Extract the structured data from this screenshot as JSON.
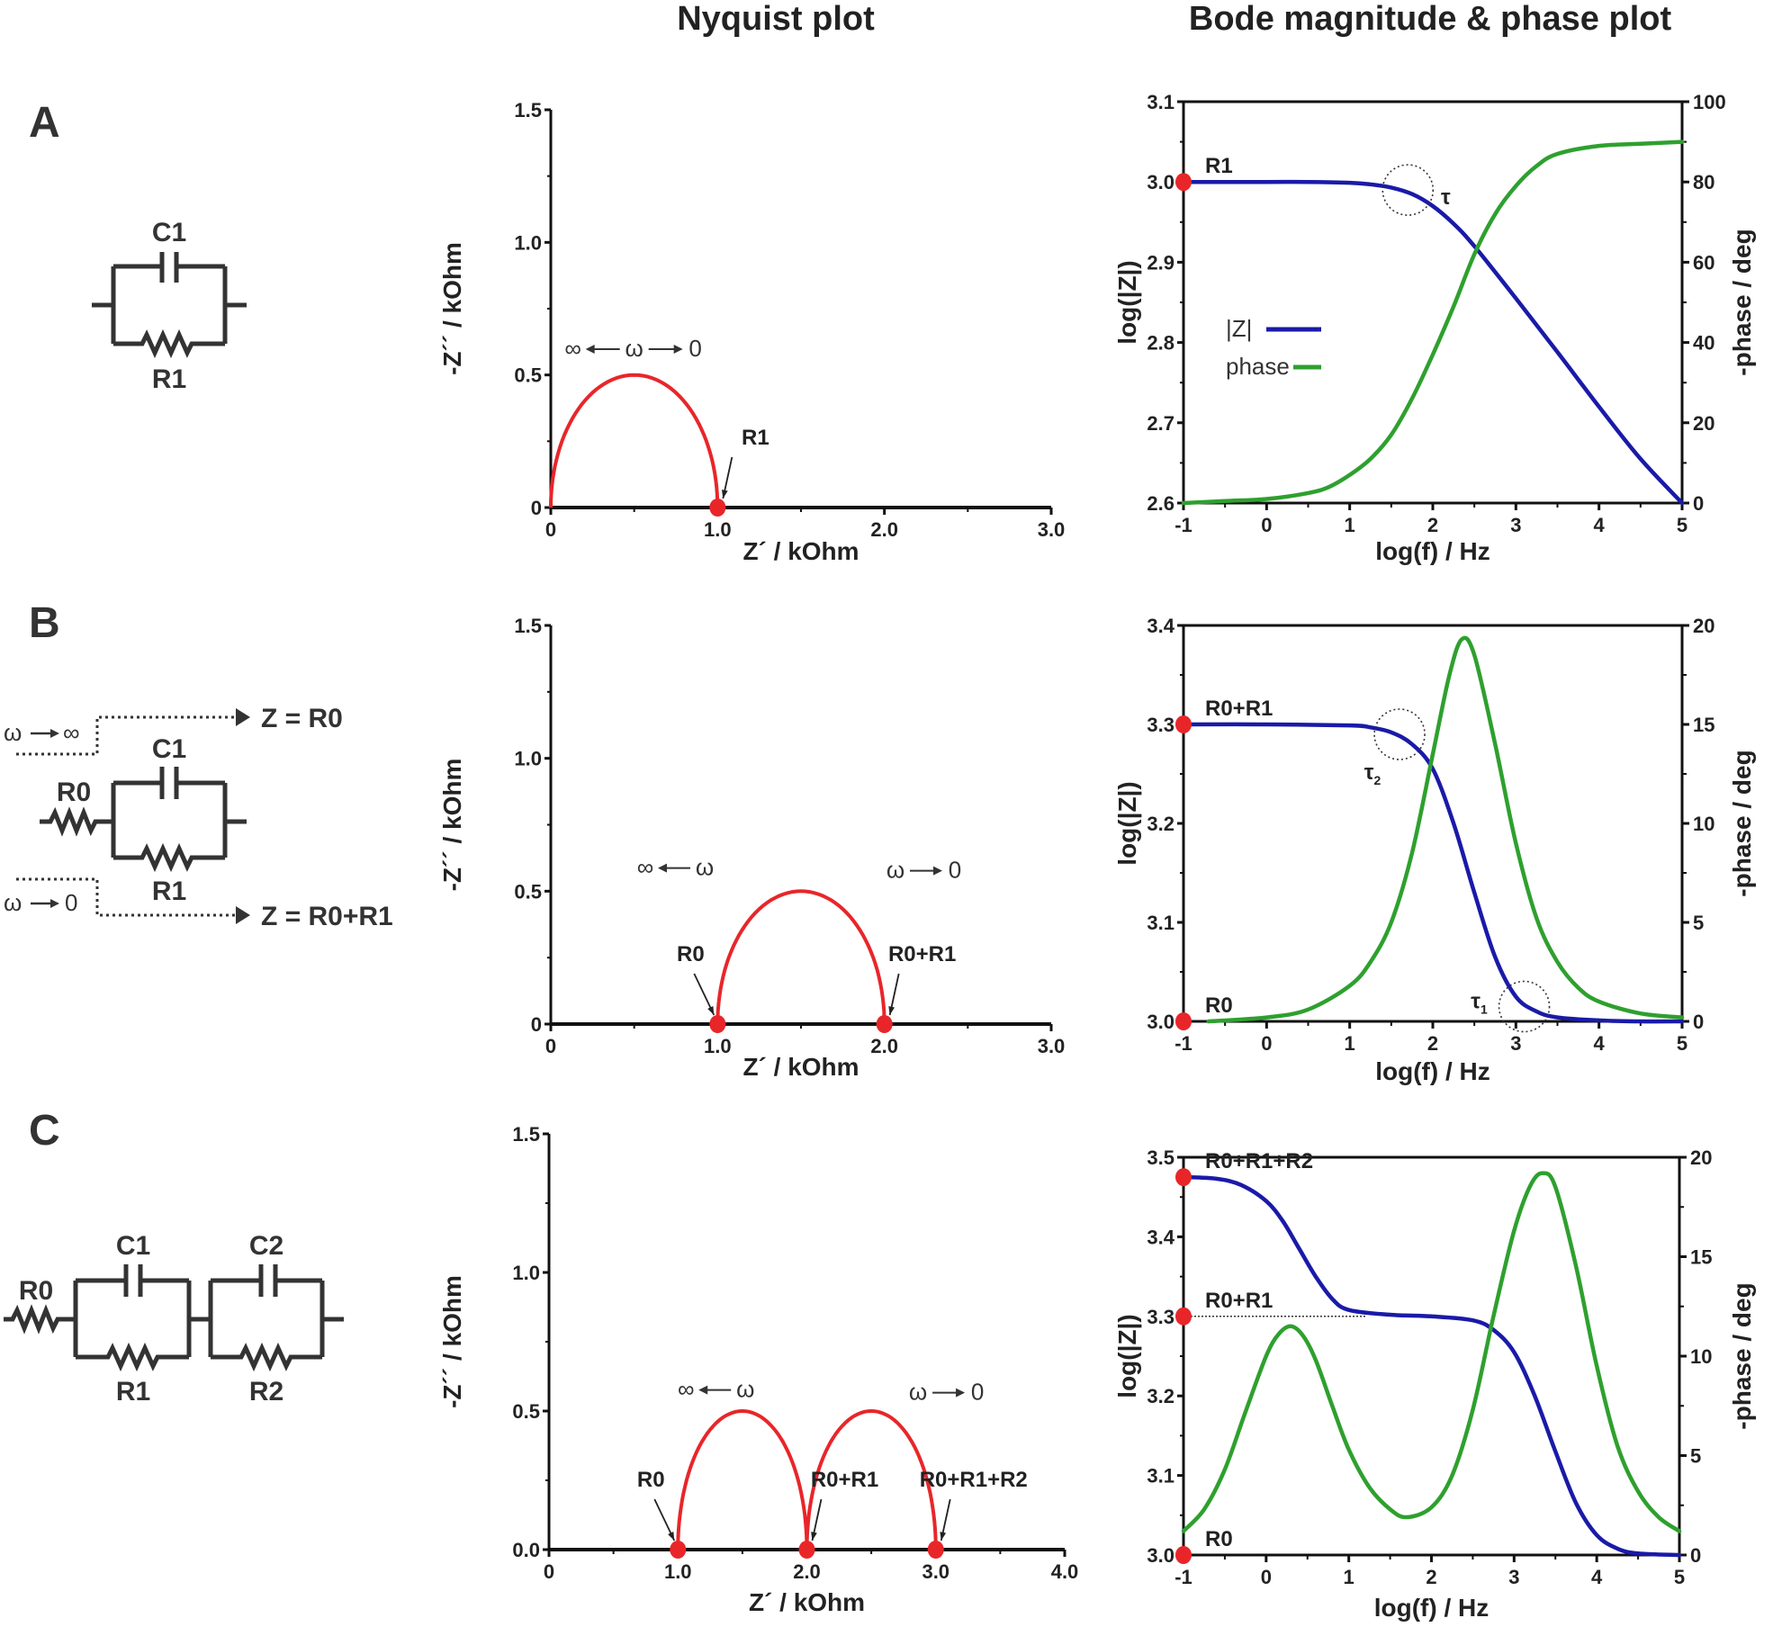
{
  "headers": {
    "nyquist": "Nyquist plot",
    "bode": "Bode magnitude & phase plot"
  },
  "panels": [
    {
      "label": "A",
      "circuit": {
        "elements": [
          "C1",
          "R1"
        ],
        "description": "C1 in parallel with R1"
      }
    },
    {
      "label": "B",
      "circuit": {
        "elements": [
          "R0",
          "C1",
          "R1"
        ],
        "description": "R0 in series with (C1 parallel R1)",
        "limit_high": {
          "omega": "ω",
          "arrow_to": "∞",
          "result": "Z = R0"
        },
        "limit_low": {
          "omega": "ω",
          "arrow_to": "0",
          "result": "Z = R0+R1"
        }
      }
    },
    {
      "label": "C",
      "circuit": {
        "elements": [
          "R0",
          "C1",
          "R1",
          "C2",
          "R2"
        ],
        "description": "R0 in series with (C1 parallel R1) and (C2 parallel R2)"
      }
    }
  ],
  "chart_data": [
    {
      "id": "nyquist-A",
      "type": "line",
      "title": "Nyquist plot",
      "xlabel": "Z´ / kOhm",
      "ylabel": "-Z´´ / kOhm",
      "xlim": [
        0,
        3.0
      ],
      "ylim": [
        0,
        1.5
      ],
      "xticks": [
        0,
        1.0,
        2.0,
        3.0
      ],
      "xtick_labels": [
        "0",
        "1.0",
        "2.0",
        "3.0"
      ],
      "yticks": [
        0,
        0.5,
        1.0,
        1.5
      ],
      "ytick_labels": [
        "0",
        "0.5",
        "1.0",
        "1.5"
      ],
      "series": [
        {
          "name": "impedance",
          "color": "#e8262a",
          "semicircles": [
            {
              "start": 0,
              "end": 1.0
            }
          ]
        }
      ],
      "points": [
        {
          "x": 1.0,
          "y": 0,
          "label": "R1"
        }
      ],
      "annotations": [
        {
          "text": "∞ ←ω→ 0",
          "parts": [
            "∞",
            "ω",
            "0"
          ],
          "x": 0.5,
          "y": 0.57
        }
      ]
    },
    {
      "id": "bode-A",
      "type": "line",
      "title": "Bode magnitude & phase plot",
      "xlabel": "log(f) / Hz",
      "ylabel": "log(|Z|)",
      "y2label": "-phase / deg",
      "xlim": [
        -1,
        5
      ],
      "ylim": [
        2.6,
        3.1
      ],
      "y2lim": [
        0,
        100
      ],
      "xticks": [
        -1,
        0,
        1,
        2,
        3,
        4,
        5
      ],
      "xtick_labels": [
        "-1",
        "0",
        "1",
        "2",
        "3",
        "4",
        "5"
      ],
      "yticks": [
        2.6,
        2.7,
        2.8,
        2.9,
        3.0,
        3.1
      ],
      "ytick_labels": [
        "2.6",
        "2.7",
        "2.8",
        "2.9",
        "3.0",
        "3.1"
      ],
      "y2ticks": [
        0,
        20,
        40,
        60,
        80,
        100
      ],
      "y2tick_labels": [
        "0",
        "20",
        "40",
        "60",
        "80",
        "100"
      ],
      "legend": {
        "position": "center-left",
        "entries": [
          {
            "name": "|Z|",
            "color": "#1a1aa8"
          },
          {
            "name": "phase",
            "color": "#2ea02e"
          }
        ]
      },
      "series": [
        {
          "name": "|Z|",
          "axis": "left",
          "color": "#1a1aa8",
          "x": [
            -1,
            -0.5,
            0,
            0.5,
            1,
            1.25,
            1.5,
            1.75,
            2,
            2.25,
            2.5,
            3,
            3.5,
            4,
            4.5,
            5
          ],
          "y": [
            3.0,
            3.0,
            3.0,
            3.0,
            2.999,
            2.997,
            2.993,
            2.985,
            2.97,
            2.948,
            2.92,
            2.855,
            2.788,
            2.72,
            2.655,
            2.6
          ]
        },
        {
          "name": "phase",
          "axis": "right",
          "color": "#2ea02e",
          "x": [
            -1,
            -0.5,
            0,
            0.5,
            0.75,
            1,
            1.25,
            1.5,
            1.75,
            2,
            2.25,
            2.5,
            2.75,
            3,
            3.25,
            3.5,
            4,
            4.5,
            5
          ],
          "y": [
            0,
            0.5,
            1,
            2.5,
            4,
            7,
            11,
            17,
            26,
            37,
            49,
            62,
            72,
            79,
            84,
            87,
            89,
            89.5,
            90
          ]
        }
      ],
      "points": [
        {
          "x": -1,
          "y": 3.0,
          "label": "R1"
        }
      ],
      "annotations": [
        {
          "text": "τ",
          "x": 1.7,
          "y": 2.99,
          "circled": true
        }
      ]
    },
    {
      "id": "nyquist-B",
      "type": "line",
      "title": "Nyquist plot",
      "xlabel": "Z´ / kOhm",
      "ylabel": "-Z´´ / kOhm",
      "xlim": [
        0,
        3.0
      ],
      "ylim": [
        0,
        1.5
      ],
      "xticks": [
        0,
        1.0,
        2.0,
        3.0
      ],
      "xtick_labels": [
        "0",
        "1.0",
        "2.0",
        "3.0"
      ],
      "yticks": [
        0,
        0.5,
        1.0,
        1.5
      ],
      "ytick_labels": [
        "0",
        "0.5",
        "1.0",
        "1.5"
      ],
      "series": [
        {
          "name": "impedance",
          "color": "#e8262a",
          "semicircles": [
            {
              "start": 1.0,
              "end": 2.0
            }
          ]
        }
      ],
      "points": [
        {
          "x": 1.0,
          "y": 0,
          "label": "R0"
        },
        {
          "x": 2.0,
          "y": 0,
          "label": "R0+R1"
        }
      ],
      "annotations": [
        {
          "text": "∞ ← ω",
          "parts": [
            "∞",
            "ω"
          ],
          "x": 0.75,
          "y": 0.56
        },
        {
          "text": "ω → 0",
          "parts": [
            "ω",
            "0"
          ],
          "x": 2.25,
          "y": 0.55
        }
      ]
    },
    {
      "id": "bode-B",
      "type": "line",
      "title": "Bode magnitude & phase plot",
      "xlabel": "log(f) / Hz",
      "ylabel": "log(|Z|)",
      "y2label": "-phase / deg",
      "xlim": [
        -1,
        5
      ],
      "ylim": [
        3.0,
        3.4
      ],
      "y2lim": [
        0,
        20
      ],
      "xticks": [
        -1,
        0,
        1,
        2,
        3,
        4,
        5
      ],
      "xtick_labels": [
        "-1",
        "0",
        "1",
        "2",
        "3",
        "4",
        "5"
      ],
      "yticks": [
        3.0,
        3.1,
        3.2,
        3.3,
        3.4
      ],
      "ytick_labels": [
        "3.0",
        "3.1",
        "3.2",
        "3.3",
        "3.4"
      ],
      "y2ticks": [
        0,
        5,
        10,
        15,
        20
      ],
      "y2tick_labels": [
        "0",
        "5",
        "10",
        "15",
        "20"
      ],
      "series": [
        {
          "name": "|Z|",
          "axis": "left",
          "color": "#1a1aa8",
          "x": [
            -1,
            0,
            1,
            1.25,
            1.5,
            1.75,
            2,
            2.25,
            2.5,
            2.75,
            3,
            3.25,
            3.5,
            4,
            4.5,
            5
          ],
          "y": [
            3.3,
            3.3,
            3.299,
            3.297,
            3.292,
            3.28,
            3.255,
            3.2,
            3.13,
            3.065,
            3.025,
            3.01,
            3.004,
            3.001,
            3.0,
            3.0
          ]
        },
        {
          "name": "phase",
          "axis": "right",
          "color": "#2ea02e",
          "x": [
            -0.7,
            0,
            0.5,
            1,
            1.25,
            1.5,
            1.75,
            2,
            2.2,
            2.35,
            2.5,
            2.75,
            3,
            3.25,
            3.5,
            3.75,
            4,
            4.5,
            5
          ],
          "y": [
            0,
            0.2,
            0.6,
            1.8,
            3,
            5,
            8.5,
            13.5,
            17.5,
            19.3,
            18.5,
            14,
            9,
            5.2,
            3,
            1.7,
            1,
            0.4,
            0.2
          ]
        }
      ],
      "points": [
        {
          "x": -1,
          "y": 3.3,
          "label": "R0+R1"
        },
        {
          "x": -1,
          "y": 3.0,
          "label": "R0"
        }
      ],
      "annotations": [
        {
          "text": "τ2",
          "base": "τ",
          "sub": "2",
          "x": 1.6,
          "y": 3.29,
          "circled": true
        },
        {
          "text": "τ1",
          "base": "τ",
          "sub": "1",
          "x": 3.1,
          "y": 3.015,
          "circled": true
        }
      ]
    },
    {
      "id": "nyquist-C",
      "type": "line",
      "title": "Nyquist plot",
      "xlabel": "Z´ / kOhm",
      "ylabel": "-Z´´ / kOhm",
      "xlim": [
        0,
        4.0
      ],
      "ylim": [
        0,
        1.5
      ],
      "xticks": [
        0,
        1.0,
        2.0,
        3.0,
        4.0
      ],
      "xtick_labels": [
        "0",
        "1.0",
        "2.0",
        "3.0",
        "4.0"
      ],
      "yticks": [
        0,
        0.5,
        1.0,
        1.5
      ],
      "ytick_labels": [
        "0.0",
        "0.5",
        "1.0",
        "1.5"
      ],
      "series": [
        {
          "name": "impedance",
          "color": "#e8262a",
          "semicircles": [
            {
              "start": 1.0,
              "end": 2.0
            },
            {
              "start": 2.0,
              "end": 3.0
            }
          ]
        }
      ],
      "points": [
        {
          "x": 1.0,
          "y": 0,
          "label": "R0"
        },
        {
          "x": 2.0,
          "y": 0,
          "label": "R0+R1"
        },
        {
          "x": 3.0,
          "y": 0,
          "label": "R0+R1+R2"
        }
      ],
      "annotations": [
        {
          "text": "∞ ← ω",
          "parts": [
            "∞",
            "ω"
          ],
          "x": 1.3,
          "y": 0.55
        },
        {
          "text": "ω → 0",
          "parts": [
            "ω",
            "0"
          ],
          "x": 3.1,
          "y": 0.54
        }
      ]
    },
    {
      "id": "bode-C",
      "type": "line",
      "title": "Bode magnitude & phase plot",
      "xlabel": "log(f) / Hz",
      "ylabel": "log(|Z|)",
      "y2label": "-phase / deg",
      "xlim": [
        -1,
        5
      ],
      "ylim": [
        3.0,
        3.5
      ],
      "y2lim": [
        0,
        20
      ],
      "xticks": [
        -1,
        0,
        1,
        2,
        3,
        4,
        5
      ],
      "xtick_labels": [
        "-1",
        "0",
        "1",
        "2",
        "3",
        "4",
        "5"
      ],
      "yticks": [
        3.0,
        3.1,
        3.2,
        3.3,
        3.4,
        3.5
      ],
      "ytick_labels": [
        "3.0",
        "3.1",
        "3.2",
        "3.3",
        "3.4",
        "3.5"
      ],
      "y2ticks": [
        0,
        5,
        10,
        15,
        20
      ],
      "y2tick_labels": [
        "0",
        "5",
        "10",
        "15",
        "20"
      ],
      "series": [
        {
          "name": "|Z|",
          "axis": "left",
          "color": "#1a1aa8",
          "x": [
            -1,
            -0.6,
            -0.3,
            0,
            0.2,
            0.4,
            0.6,
            0.8,
            1,
            1.5,
            2,
            2.5,
            2.75,
            3,
            3.25,
            3.5,
            3.75,
            4,
            4.25,
            4.5,
            5
          ],
          "y": [
            3.475,
            3.473,
            3.465,
            3.445,
            3.42,
            3.385,
            3.35,
            3.322,
            3.308,
            3.302,
            3.3,
            3.295,
            3.283,
            3.255,
            3.2,
            3.13,
            3.065,
            3.025,
            3.008,
            3.002,
            3.0
          ]
        },
        {
          "name": "phase",
          "axis": "right",
          "color": "#2ea02e",
          "x": [
            -1,
            -0.75,
            -0.5,
            -0.25,
            0,
            0.15,
            0.3,
            0.45,
            0.6,
            0.8,
            1,
            1.25,
            1.5,
            1.7,
            2,
            2.25,
            2.5,
            2.75,
            3,
            3.2,
            3.35,
            3.5,
            3.75,
            4,
            4.25,
            4.5,
            4.75,
            5
          ],
          "y": [
            1.2,
            2.3,
            4.3,
            7.2,
            10,
            11.1,
            11.5,
            11,
            9.8,
            7.5,
            5.3,
            3.4,
            2.3,
            1.9,
            2.4,
            4,
            7.3,
            12,
            16.3,
            18.6,
            19.2,
            18.5,
            14.5,
            9.5,
            5.5,
            3.2,
            1.9,
            1.2
          ]
        }
      ],
      "points": [
        {
          "x": -1,
          "y": 3.475,
          "label": "R0+R1+R2"
        },
        {
          "x": -1,
          "y": 3.3,
          "label": "R0+R1"
        },
        {
          "x": -1,
          "y": 3.0,
          "label": "R0"
        }
      ],
      "reference_lines": [
        {
          "y": 3.3,
          "x_from": -1,
          "x_to": 1.2,
          "style": "dotted"
        }
      ]
    }
  ]
}
